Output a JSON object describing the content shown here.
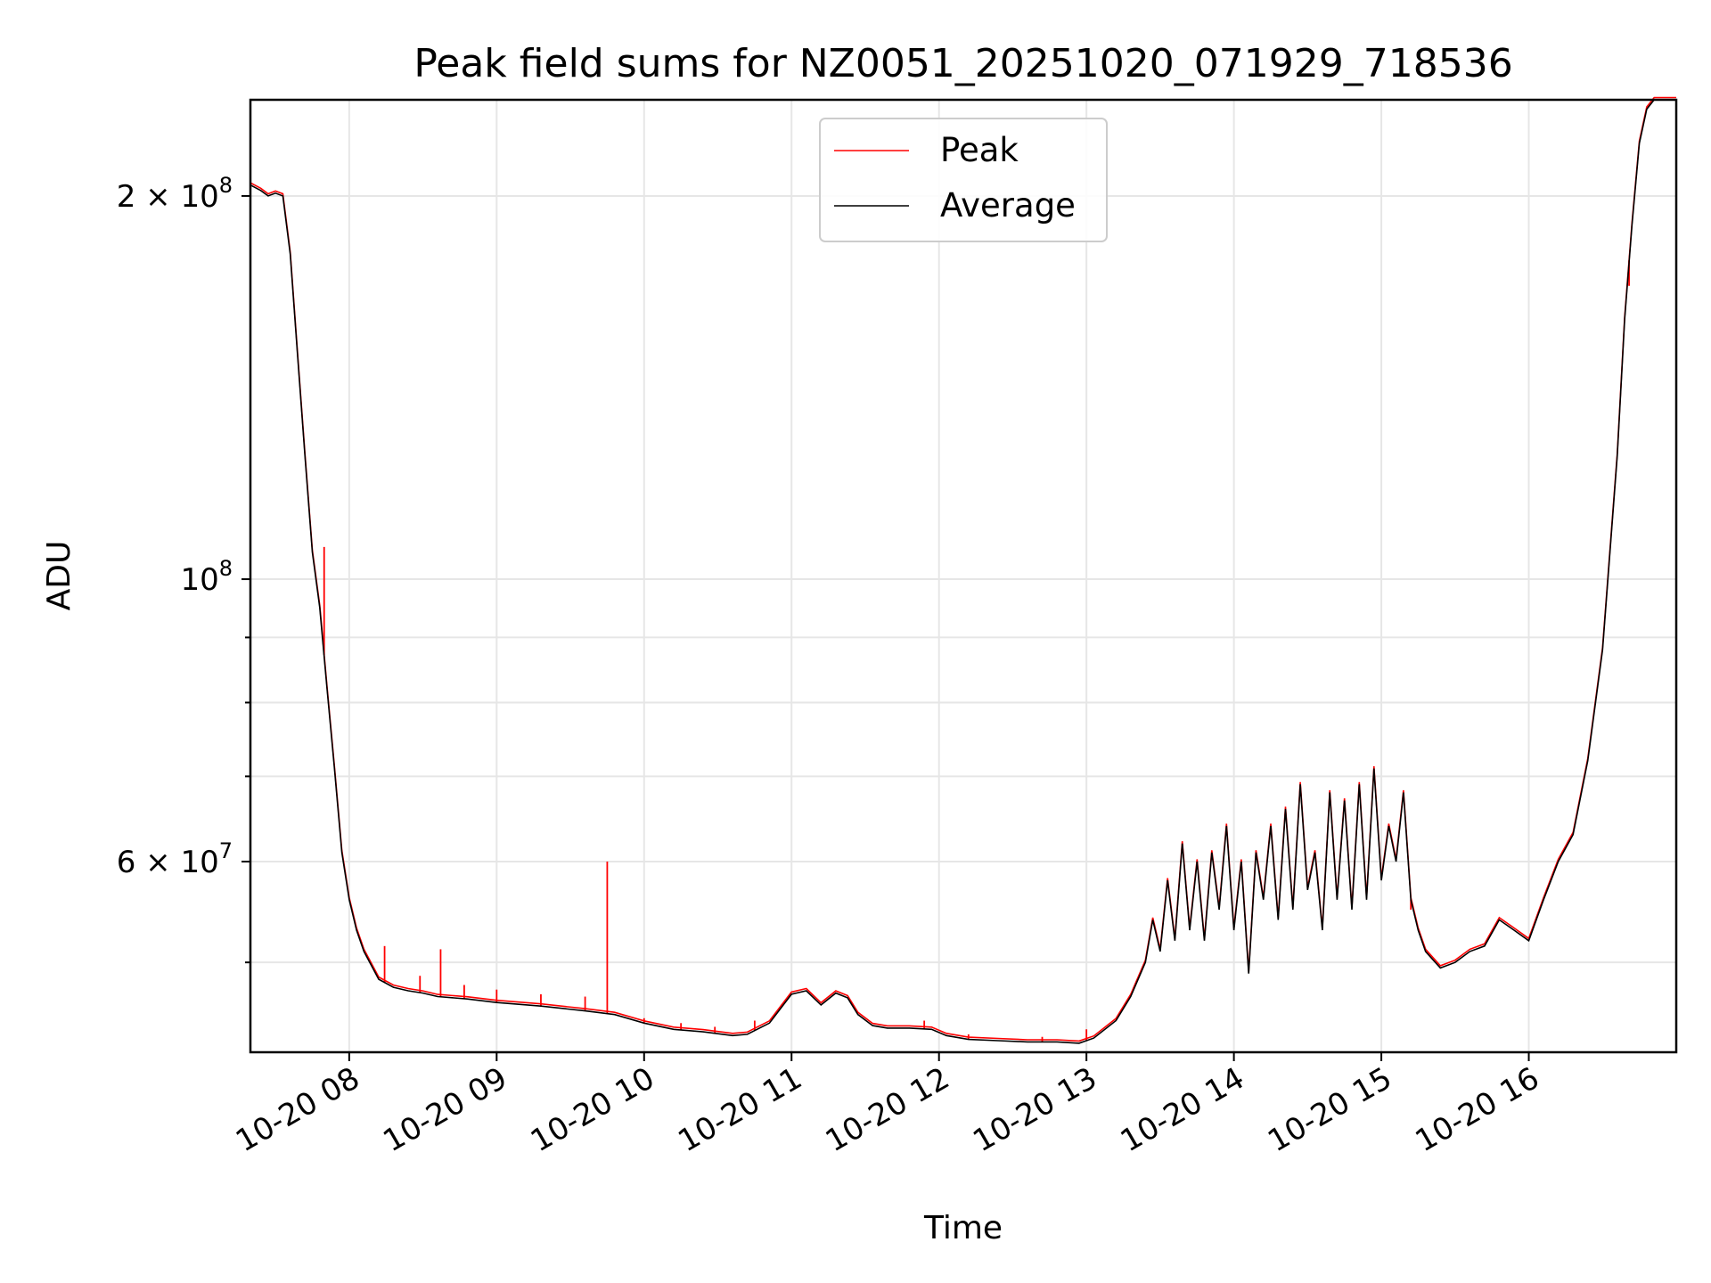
{
  "chart_data": {
    "type": "line",
    "title": "Peak field sums for NZ0051_20251020_071929_718536",
    "xlabel": "Time",
    "ylabel": "ADU",
    "x_unit": "hours since 2025-10-20 00:00",
    "xlim": [
      7.33,
      17.0
    ],
    "ylim": [
      42500000,
      238000000
    ],
    "yscale": "log",
    "grid": true,
    "legend_position": "top-center",
    "x_ticks": [
      {
        "value": 8,
        "label": "10-20 08"
      },
      {
        "value": 9,
        "label": "10-20 09"
      },
      {
        "value": 10,
        "label": "10-20 10"
      },
      {
        "value": 11,
        "label": "10-20 11"
      },
      {
        "value": 12,
        "label": "10-20 12"
      },
      {
        "value": 13,
        "label": "10-20 13"
      },
      {
        "value": 14,
        "label": "10-20 14"
      },
      {
        "value": 15,
        "label": "10-20 15"
      },
      {
        "value": 16,
        "label": "10-20 16"
      }
    ],
    "y_major_ticks": [
      {
        "value": 200000000,
        "mant": "2",
        "exp": "8"
      },
      {
        "value": 100000000,
        "mant": "",
        "exp": "8"
      },
      {
        "value": 60000000,
        "mant": "6",
        "exp": "7"
      }
    ],
    "y_minor_ticks": [
      90000000,
      80000000,
      70000000,
      50000000
    ],
    "series": [
      {
        "name": "Average",
        "color": "#000000",
        "x": [
          7.33,
          7.4,
          7.45,
          7.5,
          7.55,
          7.6,
          7.65,
          7.7,
          7.75,
          7.8,
          7.85,
          7.9,
          7.95,
          8.0,
          8.05,
          8.1,
          8.2,
          8.3,
          8.4,
          8.5,
          8.6,
          8.8,
          9.0,
          9.3,
          9.6,
          9.8,
          10.0,
          10.2,
          10.4,
          10.6,
          10.7,
          10.85,
          11.0,
          11.1,
          11.2,
          11.3,
          11.38,
          11.45,
          11.55,
          11.65,
          11.8,
          11.95,
          12.05,
          12.2,
          12.4,
          12.6,
          12.8,
          12.95,
          13.05,
          13.2,
          13.3,
          13.4,
          13.45,
          13.5,
          13.55,
          13.6,
          13.65,
          13.7,
          13.75,
          13.8,
          13.85,
          13.9,
          13.95,
          14.0,
          14.05,
          14.1,
          14.15,
          14.2,
          14.25,
          14.3,
          14.35,
          14.4,
          14.45,
          14.5,
          14.55,
          14.6,
          14.65,
          14.7,
          14.75,
          14.8,
          14.85,
          14.9,
          14.95,
          15.0,
          15.05,
          15.1,
          15.15,
          15.2,
          15.25,
          15.3,
          15.4,
          15.5,
          15.6,
          15.7,
          15.8,
          15.9,
          16.0,
          16.1,
          16.2,
          16.3,
          16.4,
          16.5,
          16.6,
          16.65,
          16.7,
          16.75,
          16.8,
          16.85,
          16.9,
          17.0
        ],
        "y": [
          204000000,
          202000000,
          200000000,
          201000000,
          200000000,
          180000000,
          150000000,
          125000000,
          105000000,
          95000000,
          82000000,
          71000000,
          61000000,
          56000000,
          53000000,
          51000000,
          48500000,
          47800000,
          47500000,
          47300000,
          47000000,
          46800000,
          46500000,
          46200000,
          45800000,
          45500000,
          44800000,
          44300000,
          44100000,
          43800000,
          43900000,
          44800000,
          47200000,
          47500000,
          46300000,
          47300000,
          46900000,
          45500000,
          44600000,
          44400000,
          44400000,
          44300000,
          43800000,
          43500000,
          43400000,
          43300000,
          43300000,
          43200000,
          43600000,
          45000000,
          47000000,
          50000000,
          54000000,
          51000000,
          58000000,
          52000000,
          62000000,
          53000000,
          60000000,
          52000000,
          61000000,
          55000000,
          64000000,
          53000000,
          60000000,
          49000000,
          61000000,
          56000000,
          64000000,
          54000000,
          66000000,
          55000000,
          69000000,
          57000000,
          61000000,
          53000000,
          68000000,
          56000000,
          67000000,
          55000000,
          69000000,
          56000000,
          71000000,
          58000000,
          64000000,
          60000000,
          68000000,
          56000000,
          53000000,
          51000000,
          49500000,
          50000000,
          51000000,
          51500000,
          54000000,
          53000000,
          52000000,
          56000000,
          60000000,
          63000000,
          72000000,
          88000000,
          125000000,
          160000000,
          190000000,
          220000000,
          234000000,
          238000000,
          238000000,
          238000000
        ]
      },
      {
        "name": "Peak",
        "color": "#ff0000",
        "spikes": [
          {
            "x": 7.83,
            "y": 106000000
          },
          {
            "x": 8.24,
            "y": 51500000
          },
          {
            "x": 8.48,
            "y": 48800000
          },
          {
            "x": 8.62,
            "y": 51200000
          },
          {
            "x": 8.78,
            "y": 48000000
          },
          {
            "x": 9.0,
            "y": 47600000
          },
          {
            "x": 9.3,
            "y": 47200000
          },
          {
            "x": 9.6,
            "y": 47000000
          },
          {
            "x": 9.75,
            "y": 60000000
          },
          {
            "x": 10.0,
            "y": 45200000
          },
          {
            "x": 10.25,
            "y": 44800000
          },
          {
            "x": 10.48,
            "y": 44500000
          },
          {
            "x": 10.75,
            "y": 45000000
          },
          {
            "x": 11.9,
            "y": 45000000
          },
          {
            "x": 12.2,
            "y": 43900000
          },
          {
            "x": 12.7,
            "y": 43700000
          },
          {
            "x": 13.0,
            "y": 44300000
          },
          {
            "x": 15.2,
            "y": 55000000
          },
          {
            "x": 16.68,
            "y": 170000000
          }
        ]
      }
    ]
  }
}
